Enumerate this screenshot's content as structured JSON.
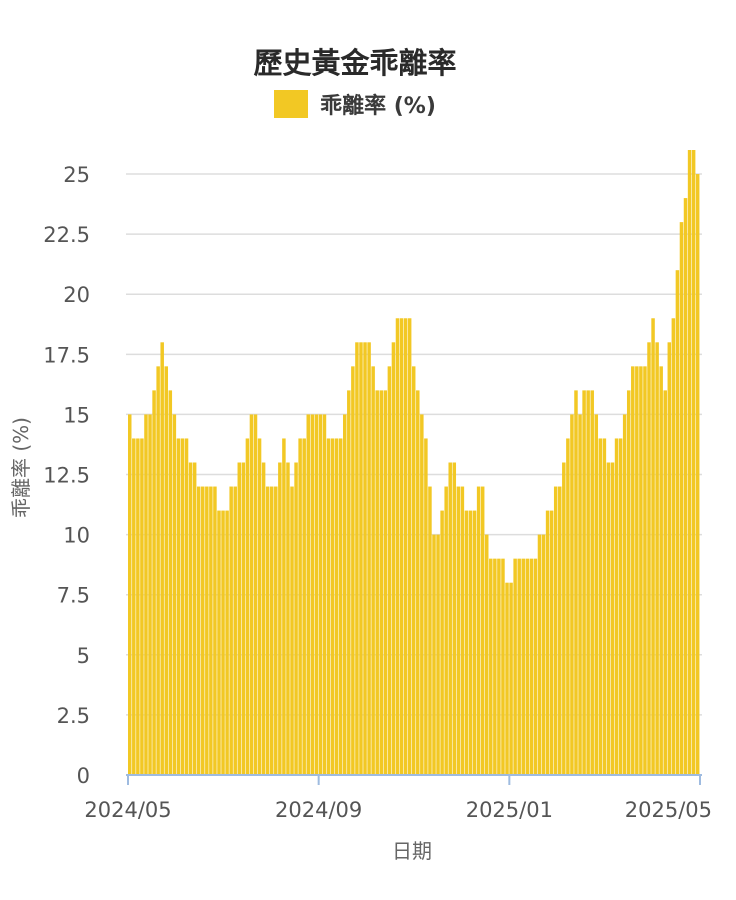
{
  "chart_data": {
    "type": "bar",
    "title": "歷史黃金乖離率",
    "xlabel": "日期",
    "ylabel": "乖離率 (%)",
    "ylim": [
      0,
      26
    ],
    "yticks": [
      0,
      2.5,
      5,
      7.5,
      10,
      12.5,
      15,
      17.5,
      20,
      22.5,
      25
    ],
    "ytick_labels": [
      "0",
      "2.5",
      "5",
      "7.5",
      "10",
      "12.5",
      "15",
      "17.5",
      "20",
      "22.5",
      "25"
    ],
    "xticks": [
      "2024/05",
      "2024/09",
      "2025/01",
      "2025/05"
    ],
    "grid": true,
    "legend_position": "top-center",
    "colors": {
      "bar": "#f2c824",
      "grid": "#dddddd",
      "axis": "#9ebbe0"
    },
    "series": [
      {
        "name": "乖離率 (%)",
        "values": [
          15,
          14,
          14,
          14,
          15,
          15,
          16,
          17,
          18,
          17,
          16,
          15,
          14,
          14,
          14,
          13,
          13,
          12,
          12,
          12,
          12,
          12,
          11,
          11,
          11,
          12,
          12,
          13,
          13,
          14,
          15,
          15,
          14,
          13,
          12,
          12,
          12,
          13,
          14,
          13,
          12,
          13,
          14,
          14,
          15,
          15,
          15,
          15,
          15,
          14,
          14,
          14,
          14,
          15,
          16,
          17,
          18,
          18,
          18,
          18,
          17,
          16,
          16,
          16,
          17,
          18,
          19,
          19,
          19,
          19,
          17,
          16,
          15,
          14,
          12,
          10,
          10,
          11,
          12,
          13,
          13,
          12,
          12,
          11,
          11,
          11,
          12,
          12,
          10,
          9,
          9,
          9,
          9,
          8,
          8,
          9,
          9,
          9,
          9,
          9,
          9,
          10,
          10,
          11,
          11,
          12,
          12,
          13,
          14,
          15,
          16,
          15,
          16,
          16,
          16,
          15,
          14,
          14,
          13,
          13,
          14,
          14,
          15,
          16,
          17,
          17,
          17,
          17,
          18,
          19,
          18,
          17,
          16,
          18,
          19,
          21,
          23,
          24,
          26,
          26,
          25
        ]
      }
    ]
  }
}
